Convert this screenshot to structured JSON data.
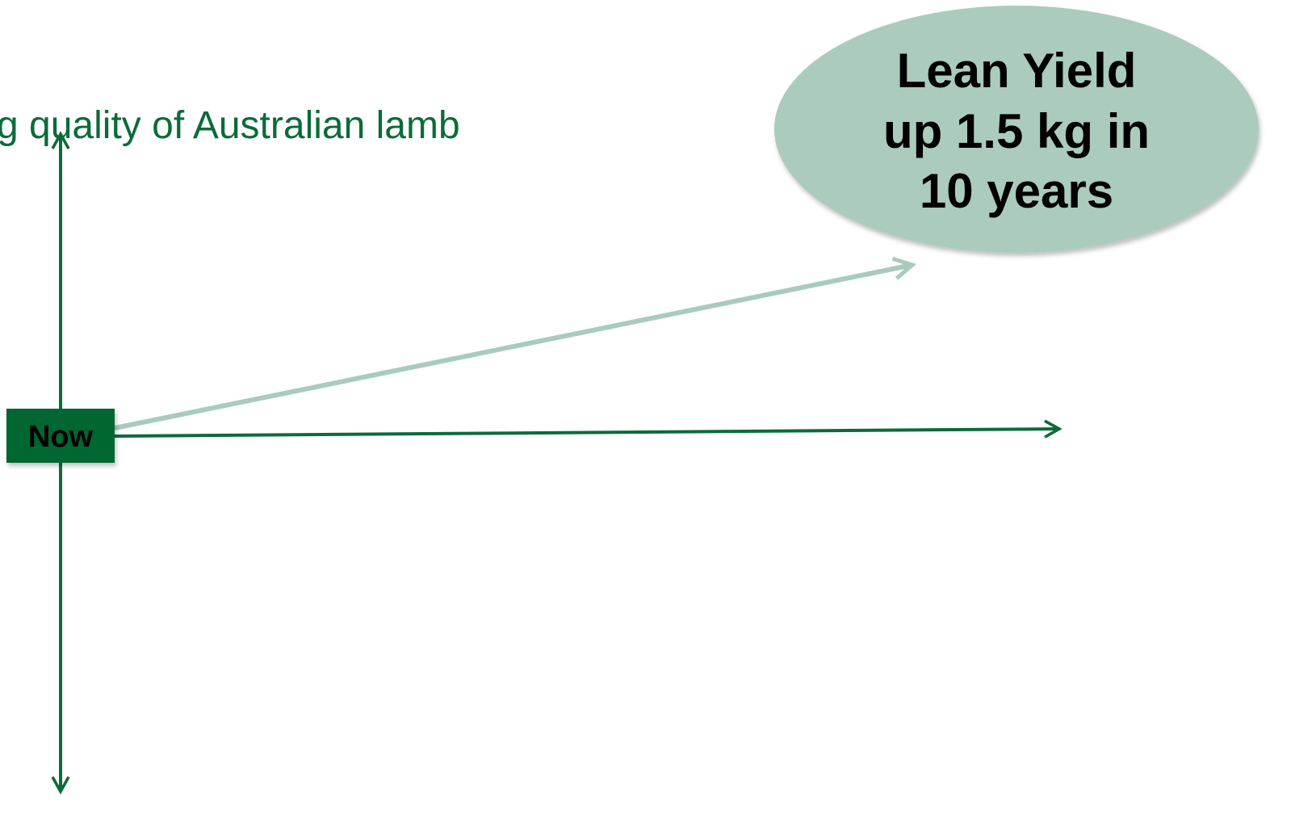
{
  "title": "g quality of Australian lamb",
  "nodes": [
    {
      "label": "Now"
    }
  ],
  "callout": {
    "lines": [
      "Lean Yield",
      "up 1.5 kg in",
      "10 years"
    ]
  }
}
